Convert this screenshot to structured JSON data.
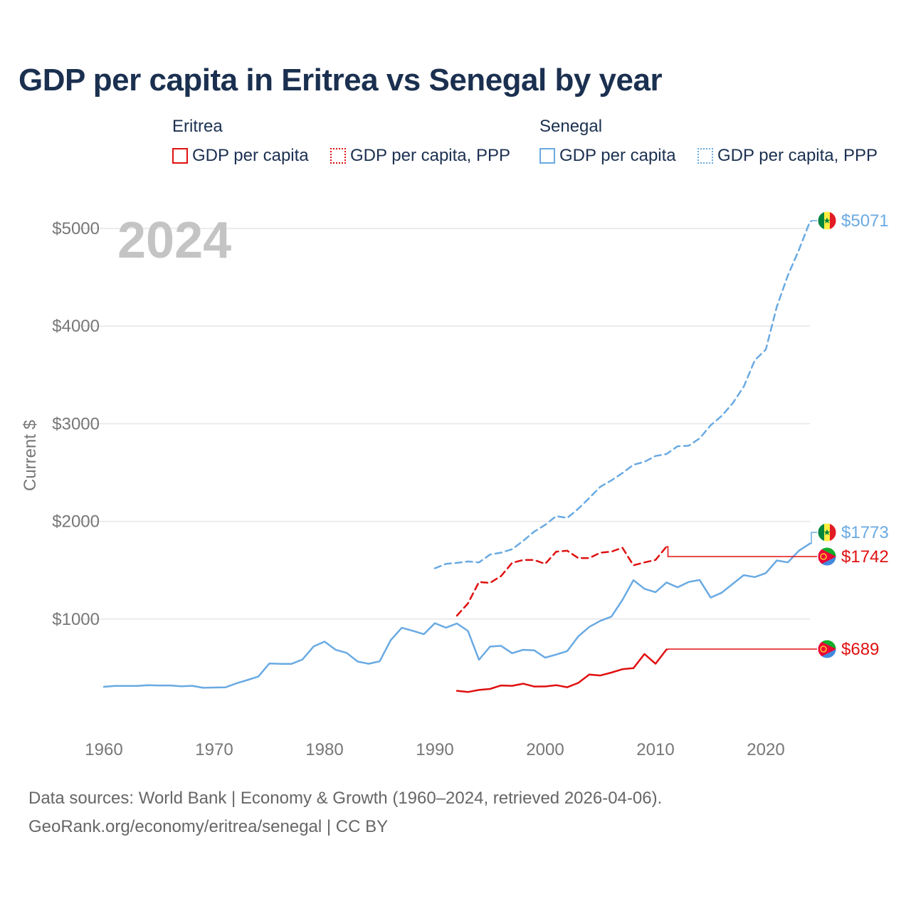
{
  "title": "GDP per capita in Eritrea vs Senegal by year",
  "legend": {
    "groups": [
      {
        "country": "Eritrea",
        "color": "#e01010",
        "items": [
          {
            "label": "GDP per capita"
          },
          {
            "label": "GDP per capita, PPP"
          }
        ]
      },
      {
        "country": "Senegal",
        "color": "#6aaae2",
        "items": [
          {
            "label": "GDP per capita"
          },
          {
            "label": "GDP per capita, PPP"
          }
        ]
      }
    ]
  },
  "footer": {
    "line1": "Data sources: World Bank | Economy & Growth (1960–2024, retrieved 2026-04-06).",
    "line2": "GeoRank.org/economy/eritrea/senegal | CC BY"
  },
  "chart_data": {
    "type": "line",
    "title": "GDP per capita in Eritrea vs Senegal by year",
    "year_label": "2024",
    "xlabel": "",
    "ylabel": "Current $",
    "xlim": [
      1960,
      2024
    ],
    "ylim": [
      0,
      5200
    ],
    "x_ticks": [
      1960,
      1970,
      1980,
      1990,
      2000,
      2010,
      2020
    ],
    "y_ticks": [
      1000,
      2000,
      3000,
      4000,
      5000
    ],
    "y_tick_labels": [
      "$1000",
      "$2000",
      "$3000",
      "$4000",
      "$5000"
    ],
    "grid": true,
    "series": [
      {
        "name": "Senegal GDP per capita, PPP",
        "country": "Senegal",
        "color": "#6aaae2",
        "dash": "dashed",
        "end_label": "$5071",
        "end_value": 5071,
        "x": [
          1990,
          1991,
          1992,
          1993,
          1994,
          1995,
          1996,
          1997,
          1998,
          1999,
          2000,
          2001,
          2002,
          2003,
          2004,
          2005,
          2006,
          2007,
          2008,
          2009,
          2010,
          2011,
          2012,
          2013,
          2014,
          2015,
          2016,
          2017,
          2018,
          2019,
          2020,
          2021,
          2022,
          2023,
          2024
        ],
        "values": [
          1520,
          1565,
          1575,
          1590,
          1580,
          1660,
          1680,
          1715,
          1800,
          1895,
          1965,
          2055,
          2035,
          2130,
          2240,
          2355,
          2420,
          2495,
          2580,
          2610,
          2670,
          2690,
          2770,
          2775,
          2850,
          2985,
          3080,
          3210,
          3380,
          3650,
          3760,
          4200,
          4520,
          4780,
          5071
        ]
      },
      {
        "name": "Senegal GDP per capita",
        "country": "Senegal",
        "color": "#6aaae2",
        "dash": "solid",
        "end_label": "$1773",
        "end_value": 1773,
        "x": [
          1960,
          1961,
          1962,
          1963,
          1964,
          1965,
          1966,
          1967,
          1968,
          1969,
          1970,
          1971,
          1972,
          1973,
          1974,
          1975,
          1976,
          1977,
          1978,
          1979,
          1980,
          1981,
          1982,
          1983,
          1984,
          1985,
          1986,
          1987,
          1988,
          1989,
          1990,
          1991,
          1992,
          1993,
          1994,
          1995,
          1996,
          1997,
          1998,
          1999,
          2000,
          2001,
          2002,
          2003,
          2004,
          2005,
          2006,
          2007,
          2008,
          2009,
          2010,
          2011,
          2012,
          2013,
          2014,
          2015,
          2016,
          2017,
          2018,
          2019,
          2020,
          2021,
          2022,
          2023,
          2024
        ],
        "values": [
          306,
          315,
          315,
          315,
          322,
          320,
          320,
          311,
          316,
          296,
          299,
          300,
          341,
          375,
          411,
          545,
          541,
          541,
          586,
          719,
          769,
          686,
          654,
          565,
          542,
          568,
          784,
          910,
          880,
          845,
          958,
          912,
          955,
          878,
          583,
          718,
          726,
          650,
          685,
          680,
          605,
          636,
          672,
          822,
          920,
          982,
          1025,
          1195,
          1398,
          1310,
          1275,
          1375,
          1325,
          1380,
          1400,
          1220,
          1270,
          1360,
          1450,
          1430,
          1470,
          1600,
          1580,
          1700,
          1773
        ]
      },
      {
        "name": "Eritrea GDP per capita, PPP",
        "country": "Eritrea",
        "color": "#e01010",
        "dash": "dashed",
        "end_label": "$1742",
        "end_value": 1742,
        "x": [
          1992,
          1993,
          1994,
          1995,
          1996,
          1997,
          1998,
          1999,
          2000,
          2001,
          2002,
          2003,
          2004,
          2005,
          2006,
          2007,
          2008,
          2009,
          2010,
          2011
        ],
        "values": [
          1035,
          1160,
          1380,
          1370,
          1440,
          1575,
          1605,
          1605,
          1565,
          1690,
          1700,
          1625,
          1625,
          1680,
          1690,
          1730,
          1550,
          1580,
          1605,
          1742
        ]
      },
      {
        "name": "Eritrea GDP per capita",
        "country": "Eritrea",
        "color": "#e01010",
        "dash": "solid",
        "end_label": "$689",
        "end_value": 689,
        "x": [
          1992,
          1993,
          1994,
          1995,
          1996,
          1997,
          1998,
          1999,
          2000,
          2001,
          2002,
          2003,
          2004,
          2005,
          2006,
          2007,
          2008,
          2009,
          2010,
          2011
        ],
        "values": [
          265,
          253,
          274,
          284,
          320,
          316,
          338,
          309,
          310,
          323,
          302,
          346,
          432,
          422,
          452,
          486,
          497,
          642,
          542,
          689
        ]
      }
    ]
  }
}
